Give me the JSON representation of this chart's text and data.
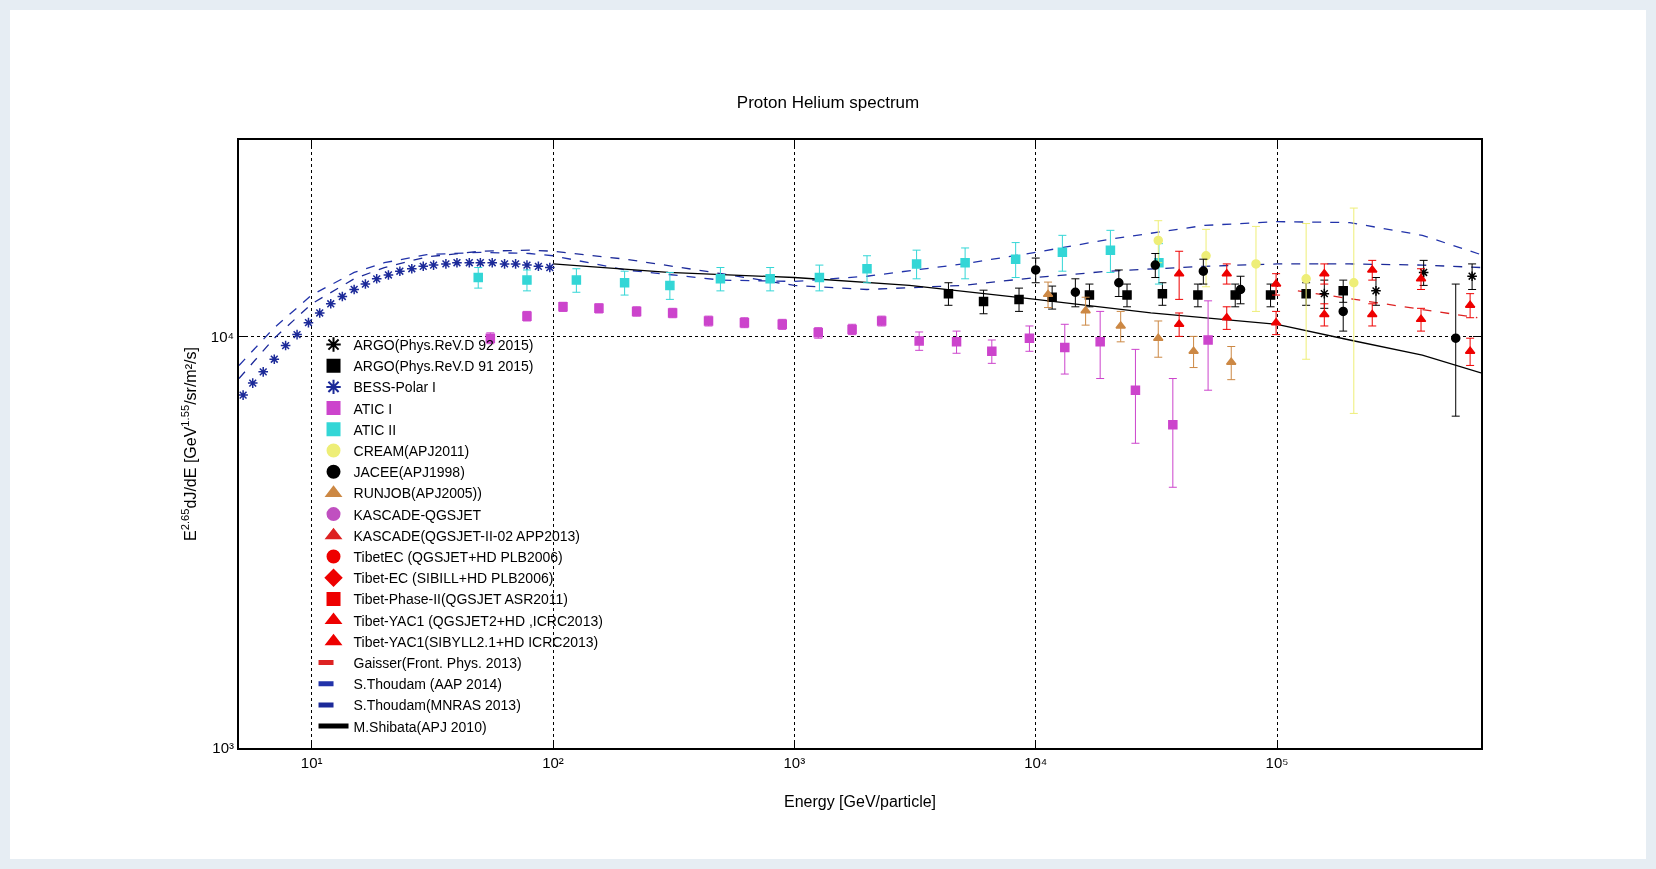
{
  "chart_data": {
    "type": "scatter",
    "title": "Proton Helium spectrum",
    "xlabel": "Energy [GeV/particle]",
    "ylabel": "E$^{2.65}$dJ/dE [GeV$^{1.55}$/sr/m²/s]",
    "log": "xy",
    "grid": true,
    "legend": "bottom left",
    "xlim": [
      5,
      700000
    ],
    "ylim": [
      1000,
      30000
    ],
    "xticks": [
      {
        "value": 10,
        "label": "10¹"
      },
      {
        "value": 100,
        "label": "10²"
      },
      {
        "value": 1000,
        "label": "10³"
      },
      {
        "value": 10000,
        "label": "10⁴"
      },
      {
        "value": 100000,
        "label": "10⁵"
      }
    ],
    "yticks": [
      {
        "value": 1000,
        "label": "10³"
      },
      {
        "value": 10000,
        "label": "10⁴"
      }
    ],
    "series": [
      {
        "name": "ARGO(Phys.ReV.D 92 2015)",
        "marker": "cross",
        "color": "#000000",
        "x": [
          157000,
          257000,
          405000,
          643000
        ],
        "values": [
          12700,
          12900,
          14300,
          14000
        ],
        "errors": [
          1000,
          1000,
          1000,
          1000
        ]
      },
      {
        "name": "ARGO(Phys.ReV.D 91 2015)",
        "marker": "square",
        "color": "#000000",
        "x": [
          4350,
          6080,
          8530,
          11700,
          16700,
          23900,
          33500,
          47000,
          67100,
          94000,
          132000,
          188000
        ],
        "values": [
          12700,
          12150,
          12300,
          12450,
          12600,
          12600,
          12700,
          12600,
          12600,
          12600,
          12700,
          12900
        ],
        "errors": [
          800,
          800,
          800,
          800,
          800,
          800,
          800,
          800,
          800,
          800,
          800,
          800
        ]
      },
      {
        "name": "BESS-Polar I",
        "marker": "cross",
        "color": "#1c2a99",
        "x": [
          5.2,
          5.7,
          6.3,
          7,
          7.8,
          8.7,
          9.7,
          10.8,
          12,
          13.4,
          15,
          16.7,
          18.6,
          20.8,
          23.2,
          26,
          29,
          32,
          36,
          40,
          45,
          50,
          56,
          63,
          70,
          78,
          87,
          97
        ],
        "values": [
          7200,
          7700,
          8200,
          8800,
          9500,
          10100,
          10800,
          11400,
          12000,
          12500,
          13000,
          13400,
          13800,
          14100,
          14400,
          14600,
          14800,
          14900,
          15000,
          15100,
          15100,
          15100,
          15100,
          15000,
          15000,
          14900,
          14800,
          14700
        ]
      },
      {
        "name": "ATIC I",
        "marker": "square",
        "color": "#cc44cc",
        "x": [
          55,
          78,
          110,
          155,
          222,
          313,
          441,
          621,
          891,
          1256,
          1735,
          2300,
          3290,
          4700,
          6580,
          9420,
          13200,
          18500,
          25900,
          37000,
          51800
        ],
        "values": [
          9900,
          11200,
          11800,
          11700,
          11500,
          11400,
          10900,
          10800,
          10700,
          10200,
          10400,
          10900,
          9750,
          9700,
          9200,
          9900,
          9400,
          9700,
          7400,
          6100,
          9800
        ],
        "errors": [
          300,
          300,
          300,
          300,
          300,
          300,
          300,
          300,
          300,
          300,
          300,
          300,
          500,
          600,
          600,
          700,
          1300,
          1800,
          1900,
          1800,
          2400
        ]
      },
      {
        "name": "ATIC II",
        "marker": "square",
        "color": "#33d6d6",
        "x": [
          49,
          78,
          125,
          198,
          305,
          494,
          794,
          1270,
          2000,
          3210,
          5100,
          8260,
          12900,
          20400,
          32400
        ],
        "values": [
          13900,
          13700,
          13700,
          13500,
          13300,
          13800,
          13800,
          13900,
          14600,
          15000,
          15100,
          15400,
          16000,
          16200,
          15100
        ],
        "errors": [
          800,
          800,
          900,
          900,
          1000,
          900,
          900,
          1000,
          1100,
          1200,
          1300,
          1500,
          1600,
          1900,
          1700
        ]
      },
      {
        "name": "CREAM(APJ2011)",
        "marker": "circle",
        "color": "#eeee77",
        "x": [
          32200,
          50800,
          81800,
          132000,
          208000
        ],
        "values": [
          17100,
          15700,
          15000,
          13800,
          13500
        ],
        "errors": [
          2000,
          2500,
          3500,
          5000,
          7000
        ]
      },
      {
        "name": "JACEE(APJ1998)",
        "marker": "circle",
        "color": "#000000",
        "x": [
          10000,
          14600,
          22100,
          31300,
          49500,
          70600,
          188000,
          550000
        ],
        "values": [
          14500,
          12800,
          13500,
          14900,
          14400,
          13000,
          11500,
          9900
        ],
        "errors": [
          1000,
          1000,
          1000,
          1000,
          1000,
          1000,
          1200,
          3500
        ]
      },
      {
        "name": "RUNJOB(APJ2005))",
        "marker": "triangle",
        "color": "#cc8844",
        "x": [
          11250,
          16100,
          22500,
          32200,
          45100,
          64600
        ],
        "values": [
          12650,
          11550,
          10600,
          9900,
          9200,
          8650
        ],
        "errors": [
          900,
          900,
          900,
          1000,
          800,
          800
        ]
      },
      {
        "name": "KASCADE-QGSJET",
        "marker": "circle",
        "color": "#c050c0"
      },
      {
        "name": "KASCADE(QGSJET-II-02 APP2013)",
        "marker": "triangle",
        "color": "#dd2222"
      },
      {
        "name": "TibetEC (QGSJET+HD PLB2006)",
        "marker": "circle",
        "color": "#ee0000"
      },
      {
        "name": "Tibet-EC (SIBILL+HD PLB2006)",
        "marker": "diamond",
        "color": "#ee0000"
      },
      {
        "name": "Tibet-Phase-II(QGSJET ASR2011)",
        "marker": "square",
        "color": "#ee0000"
      },
      {
        "name": "Tibet-YAC1 (QGSJET2+HD ,ICRC2013)",
        "marker": "triangle",
        "color": "#ee0000",
        "x": [
          39300,
          61900,
          99100,
          157000,
          248000,
          395000,
          631000
        ],
        "values": [
          14200,
          14200,
          13400,
          14200,
          14500,
          13800,
          11900
        ],
        "errors": [
          1900,
          800,
          800,
          800,
          800,
          800,
          800
        ]
      },
      {
        "name": "Tibet-YAC1(SIBYLL2.1+HD ICRC2013)",
        "marker": "triangle",
        "color": "#ee0000",
        "x": [
          39300,
          61900,
          99100,
          157000,
          248000,
          395000,
          631000
        ],
        "values": [
          10700,
          11100,
          10800,
          11300,
          11300,
          11000,
          9200
        ],
        "errors": [
          700,
          700,
          700,
          700,
          700,
          700,
          700
        ]
      },
      {
        "name": "Gaisser(Front. Phys. 2013)",
        "type": "line",
        "line_style": "dashed",
        "color": "#dd2222",
        "x": [
          122000,
          676000
        ],
        "values": [
          12900,
          11100
        ]
      },
      {
        "name": "S.Thoudam (AAP 2014)",
        "type": "line",
        "line_style": "dashed",
        "color": "#2233aa",
        "x": [
          5,
          7,
          10,
          15,
          20,
          30,
          50,
          80,
          100,
          200,
          500,
          1000,
          2000,
          5000,
          10000,
          20000,
          50000,
          100000,
          200000,
          400000,
          700000
        ],
        "values": [
          8500,
          10500,
          12600,
          14300,
          15100,
          15800,
          16000,
          15900,
          15700,
          14500,
          13700,
          13600,
          14000,
          15000,
          16000,
          17200,
          18600,
          19000,
          18900,
          17600,
          15800
        ]
      },
      {
        "name": "S.Thoudam(MNRAS 2013)",
        "type": "line",
        "line_style": "dashed",
        "color": "#1c2a99",
        "x": [
          5,
          7,
          10,
          15,
          20,
          30,
          50,
          80,
          100,
          200,
          500,
          1000,
          2000,
          5000,
          10000,
          20000,
          50000,
          100000,
          200000,
          400000,
          700000
        ],
        "values": [
          7900,
          9900,
          12000,
          13800,
          14700,
          15600,
          16100,
          16200,
          16100,
          15400,
          14200,
          13300,
          13000,
          13300,
          13900,
          14400,
          14800,
          15000,
          15000,
          14900,
          14700
        ]
      },
      {
        "name": "M.Shibata(APJ 2010)",
        "type": "line",
        "line_style": "solid",
        "color": "#000000",
        "x": [
          100,
          300,
          1000,
          3000,
          10000,
          30000,
          100000,
          200000,
          400000,
          700000
        ],
        "values": [
          15000,
          14300,
          13900,
          13300,
          12300,
          11400,
          10700,
          9800,
          9000,
          8150
        ]
      }
    ]
  }
}
